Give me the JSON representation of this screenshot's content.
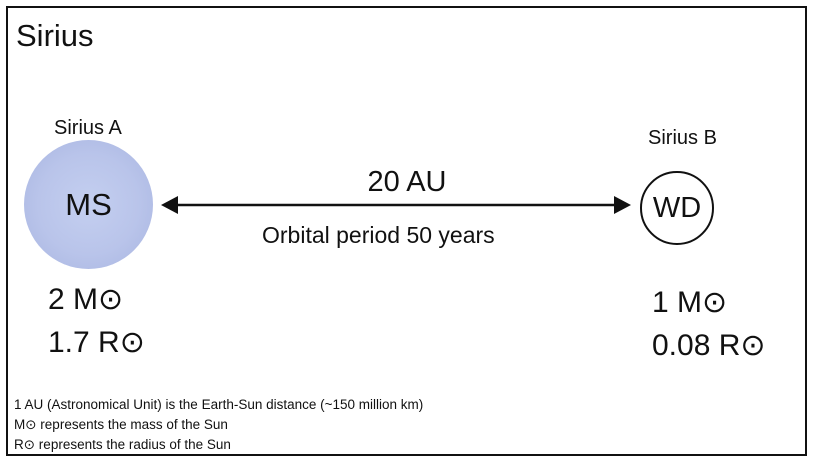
{
  "title": "Sirius",
  "star_a": {
    "name": "Sirius A",
    "label": "MS",
    "mass": "2 M⊙",
    "radius": "1.7 R⊙",
    "fill_color": "#b9c4ea"
  },
  "star_b": {
    "name": "Sirius B",
    "label": "WD",
    "mass": "1 M⊙",
    "radius": "0.08 R⊙",
    "fill_color": "#ffffff"
  },
  "separation": {
    "distance": "20 AU",
    "period": "Orbital period 50 years"
  },
  "footnotes": [
    "1 AU (Astronomical Unit) is the Earth-Sun distance (~150 million km)",
    "M⊙ represents the mass of the Sun",
    "R⊙ represents the radius of the Sun"
  ]
}
